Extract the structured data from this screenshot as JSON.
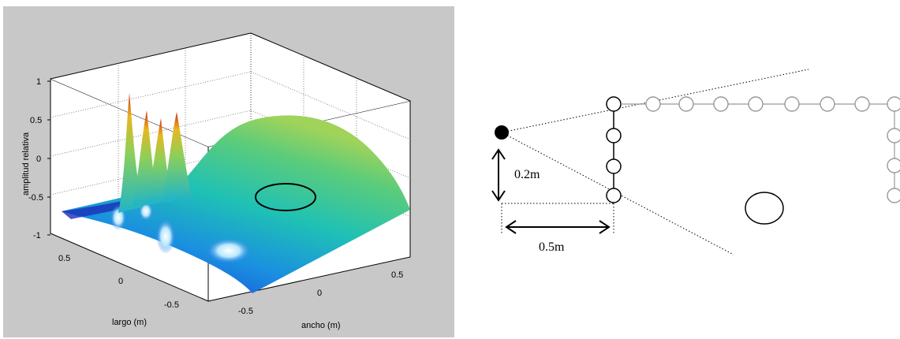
{
  "plot": {
    "ylabel": "amplitud relativa",
    "xlabel_left": "largo (m)",
    "xlabel_right": "ancho (m)",
    "z_ticks": [
      "1",
      "0.5",
      "0",
      "-0.5",
      "-1"
    ],
    "largo_ticks": [
      "0.5",
      "0",
      "-0.5"
    ],
    "ancho_ticks": [
      "-0.5",
      "0",
      "0.5"
    ]
  },
  "diagram": {
    "dim_vertical": "0.2m",
    "dim_horizontal": "0.5m"
  }
}
